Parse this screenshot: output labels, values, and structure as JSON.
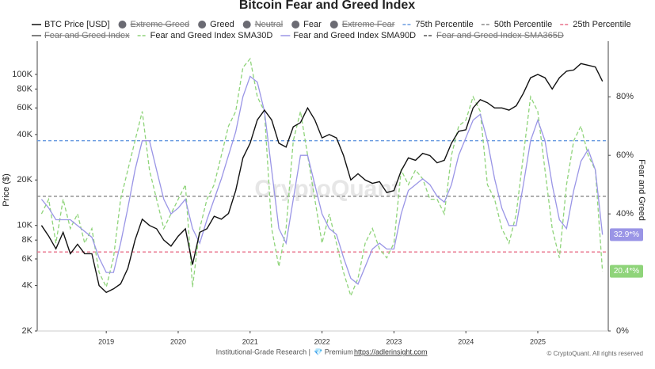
{
  "chart_data": {
    "type": "line",
    "title": "Bitcoin Fear and Greed Index",
    "y_label": "Price ($)",
    "y2_label": "Fear and Greed",
    "watermark": "CryptoQuant",
    "footer": {
      "text": "Institutional-Grade Research |",
      "premium": "💎 Premium",
      "link": "https://adlerinsight.com",
      "copyright": "© CryptoQuant. All rights reserved"
    },
    "log_y": true,
    "xlim": [
      2018.04,
      2025.98
    ],
    "xticks": [
      2019,
      2020,
      2021,
      2022,
      2023,
      2024,
      2025
    ],
    "ylim": [
      2000,
      166000
    ],
    "yticks": [
      {
        "value": 2000,
        "label": "2K"
      },
      {
        "value": 4000,
        "label": "4K"
      },
      {
        "value": 6000,
        "label": "6K"
      },
      {
        "value": 8000,
        "label": "8K"
      },
      {
        "value": 10000,
        "label": "10K"
      },
      {
        "value": 20000,
        "label": "20K"
      },
      {
        "value": 40000,
        "label": "40K"
      },
      {
        "value": 60000,
        "label": "60K"
      },
      {
        "value": 80000,
        "label": "80K"
      },
      {
        "value": 100000,
        "label": "100K"
      }
    ],
    "y2lim": [
      0,
      99
    ],
    "y2ticks": [
      {
        "value": 0,
        "label": "0%"
      },
      {
        "value": 40,
        "label": "40%"
      },
      {
        "value": 60,
        "label": "60%"
      },
      {
        "value": 80,
        "label": "80%"
      }
    ],
    "x": [
      2018.1,
      2018.2,
      2018.3,
      2018.4,
      2018.5,
      2018.6,
      2018.7,
      2018.8,
      2018.9,
      2019.0,
      2019.1,
      2019.2,
      2019.3,
      2019.4,
      2019.5,
      2019.6,
      2019.7,
      2019.8,
      2019.9,
      2020.0,
      2020.1,
      2020.2,
      2020.3,
      2020.4,
      2020.5,
      2020.6,
      2020.7,
      2020.8,
      2020.9,
      2021.0,
      2021.1,
      2021.2,
      2021.3,
      2021.4,
      2021.5,
      2021.6,
      2021.7,
      2021.8,
      2021.9,
      2022.0,
      2022.1,
      2022.2,
      2022.3,
      2022.4,
      2022.5,
      2022.6,
      2022.7,
      2022.8,
      2022.9,
      2023.0,
      2023.1,
      2023.2,
      2023.3,
      2023.4,
      2023.5,
      2023.6,
      2023.7,
      2023.8,
      2023.9,
      2024.0,
      2024.1,
      2024.2,
      2024.3,
      2024.4,
      2024.5,
      2024.6,
      2024.7,
      2024.8,
      2024.9,
      2025.0,
      2025.1,
      2025.2,
      2025.3,
      2025.4,
      2025.5,
      2025.6,
      2025.7,
      2025.8,
      2025.9
    ],
    "series": [
      {
        "name": "BTC Price [USD]",
        "color": "#111111",
        "dash": false,
        "axis": "y",
        "values": [
          10000,
          8500,
          7000,
          9000,
          6500,
          7500,
          6500,
          6500,
          4000,
          3600,
          3800,
          4100,
          5200,
          8000,
          11000,
          10000,
          9500,
          8000,
          7300,
          8500,
          9500,
          5500,
          9000,
          9500,
          11500,
          11000,
          12000,
          17000,
          28000,
          35000,
          50000,
          58000,
          50000,
          35000,
          33000,
          45000,
          48000,
          60000,
          50000,
          38000,
          40000,
          38000,
          29000,
          20000,
          22000,
          20000,
          19000,
          19500,
          16500,
          17000,
          23000,
          28000,
          27000,
          30000,
          29000,
          26000,
          27000,
          35000,
          42000,
          43000,
          60000,
          68000,
          65000,
          60000,
          60000,
          58000,
          62000,
          75000,
          95000,
          100000,
          95000,
          80000,
          95000,
          105000,
          107000,
          118000,
          115000,
          112000,
          90000
        ]
      },
      {
        "name": "Fear and Greed Index SMA30D",
        "color": "#8fd47a",
        "dash": true,
        "axis": "y2",
        "last_label": "20.4*%",
        "values": [
          40,
          45,
          30,
          45,
          35,
          40,
          30,
          35,
          20,
          15,
          25,
          45,
          55,
          65,
          75,
          55,
          45,
          35,
          40,
          45,
          50,
          15,
          35,
          45,
          50,
          60,
          70,
          75,
          90,
          93,
          80,
          75,
          35,
          22,
          35,
          65,
          75,
          60,
          45,
          30,
          40,
          30,
          20,
          12,
          18,
          30,
          35,
          28,
          25,
          30,
          55,
          50,
          55,
          52,
          45,
          45,
          40,
          60,
          70,
          72,
          80,
          75,
          50,
          45,
          35,
          30,
          40,
          60,
          80,
          75,
          55,
          35,
          25,
          50,
          65,
          70,
          60,
          55,
          20.4
        ]
      },
      {
        "name": "Fear and Greed Index SMA90D",
        "color": "#9a95e6",
        "dash": false,
        "axis": "y2",
        "last_label": "32.9*%",
        "values": [
          45,
          42,
          38,
          38,
          38,
          36,
          34,
          32,
          25,
          20,
          20,
          30,
          42,
          55,
          65,
          65,
          55,
          45,
          40,
          42,
          45,
          35,
          30,
          38,
          45,
          52,
          60,
          68,
          80,
          87,
          85,
          75,
          55,
          35,
          30,
          45,
          60,
          60,
          50,
          40,
          35,
          33,
          25,
          18,
          16,
          22,
          28,
          30,
          28,
          28,
          40,
          48,
          50,
          52,
          50,
          46,
          44,
          50,
          60,
          66,
          72,
          74,
          65,
          52,
          42,
          36,
          36,
          50,
          65,
          72,
          65,
          50,
          38,
          35,
          48,
          58,
          62,
          55,
          32.9
        ]
      }
    ],
    "reference_lines": [
      {
        "name": "75th Percentile",
        "value": 65,
        "color": "#6a9be0"
      },
      {
        "name": "50th Percentile",
        "value": 46,
        "color": "#888888"
      },
      {
        "name": "25th Percentile",
        "value": 27,
        "color": "#e8708a"
      }
    ],
    "zone_legend": [
      {
        "name": "Extreme Greed",
        "hidden": true
      },
      {
        "name": "Greed",
        "hidden": false
      },
      {
        "name": "Neutral",
        "hidden": true
      },
      {
        "name": "Fear",
        "hidden": false
      },
      {
        "name": "Extreme Fear",
        "hidden": true
      }
    ],
    "hidden_series": [
      {
        "name": "Fear and Greed Index",
        "color": "#555555",
        "dash": false
      },
      {
        "name": "Fear and Greed Index SMA365D",
        "color": "#555555",
        "dash": true
      }
    ]
  }
}
